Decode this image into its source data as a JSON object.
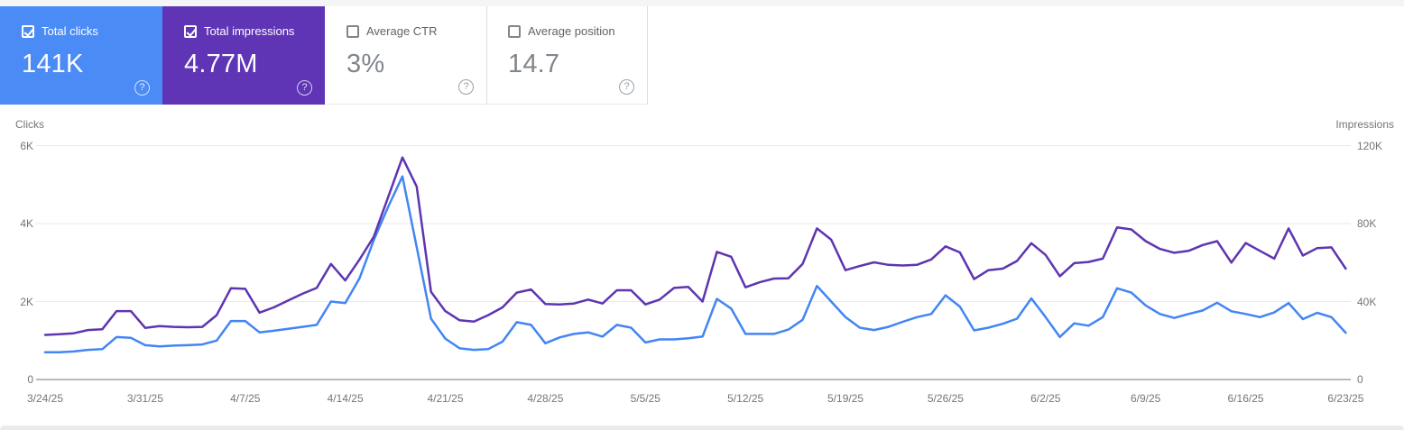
{
  "cards": [
    {
      "label": "Total clicks",
      "value": "141K",
      "checked": true,
      "bg": "#4b8bf6",
      "help_icon": "?"
    },
    {
      "label": "Total impressions",
      "value": "4.77M",
      "checked": true,
      "bg": "#5f35b5",
      "help_icon": "?"
    },
    {
      "label": "Average CTR",
      "value": "3%",
      "checked": false,
      "bg": "#ffffff",
      "help_icon": "?"
    },
    {
      "label": "Average position",
      "value": "14.7",
      "checked": false,
      "bg": "#ffffff",
      "help_icon": "?"
    }
  ],
  "chart_data": {
    "type": "line",
    "frequency": "daily",
    "start_date": "3/24/25",
    "end_date": "6/23/25",
    "grid": true,
    "left_axis": {
      "title": "Clicks",
      "ticks": [
        "6K",
        "4K",
        "2K",
        "0"
      ],
      "max": 6000,
      "min": 0
    },
    "right_axis": {
      "title": "Impressions",
      "ticks": [
        "120K",
        "80K",
        "40K",
        "0"
      ],
      "max": 120000,
      "min": 0
    },
    "x_tick_labels": [
      "3/24/25",
      "3/31/25",
      "4/7/25",
      "4/14/25",
      "4/21/25",
      "4/28/25",
      "5/5/25",
      "5/12/25",
      "5/19/25",
      "5/26/25",
      "6/2/25",
      "6/9/25",
      "6/16/25",
      "6/23/25"
    ],
    "series": [
      {
        "name": "Clicks",
        "axis": "left",
        "color": "#4285f4",
        "values": [
          700,
          700,
          720,
          760,
          780,
          1090,
          1070,
          880,
          850,
          870,
          880,
          900,
          1000,
          1500,
          1500,
          1210,
          1250,
          1300,
          1350,
          1400,
          2000,
          1960,
          2600,
          3580,
          4430,
          5210,
          3400,
          1560,
          1050,
          800,
          760,
          780,
          970,
          1470,
          1400,
          930,
          1080,
          1170,
          1210,
          1100,
          1400,
          1330,
          950,
          1030,
          1030,
          1060,
          1100,
          2070,
          1820,
          1170,
          1170,
          1170,
          1280,
          1530,
          2400,
          2000,
          1600,
          1330,
          1270,
          1350,
          1480,
          1600,
          1680,
          2160,
          1870,
          1260,
          1330,
          1430,
          1560,
          2080,
          1600,
          1090,
          1440,
          1380,
          1600,
          2340,
          2230,
          1900,
          1680,
          1580,
          1680,
          1770,
          1970,
          1750,
          1680,
          1600,
          1720,
          1960,
          1550,
          1710,
          1600,
          1200
        ]
      },
      {
        "name": "Impressions",
        "axis": "right",
        "color": "#5e35b1",
        "values": [
          22900,
          23200,
          23700,
          25400,
          25800,
          35100,
          35100,
          26500,
          27400,
          27000,
          26800,
          27000,
          33000,
          46800,
          46500,
          34300,
          37000,
          40500,
          44000,
          47000,
          59300,
          50800,
          61600,
          73300,
          93600,
          113900,
          99000,
          45000,
          35100,
          30400,
          29700,
          33000,
          37000,
          44600,
          46200,
          38700,
          38500,
          39000,
          41000,
          39000,
          45800,
          45800,
          38500,
          41000,
          47000,
          47500,
          40000,
          65500,
          63000,
          47300,
          49900,
          51800,
          51900,
          59300,
          77500,
          71700,
          56100,
          58200,
          60100,
          58800,
          58500,
          58800,
          61600,
          68300,
          65200,
          51500,
          56100,
          56900,
          60800,
          69900,
          63900,
          53000,
          59700,
          60300,
          62000,
          78000,
          77000,
          71000,
          67000,
          65000,
          66000,
          69000,
          71000,
          60000,
          70000,
          66000,
          62000,
          77500,
          63600,
          67400,
          67800,
          56900
        ]
      }
    ]
  }
}
